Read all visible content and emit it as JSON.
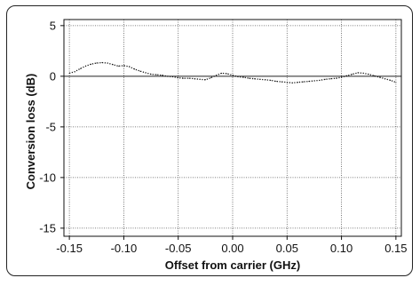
{
  "chart_data": {
    "type": "line",
    "title": "",
    "xlabel": "Offset from carrier (GHz)",
    "ylabel": "Conversion loss (dB)",
    "xlim": [
      -0.155,
      0.155
    ],
    "ylim": [
      -15.8,
      5.6
    ],
    "x_ticks": [
      -0.15,
      -0.1,
      -0.05,
      0.0,
      0.05,
      0.1,
      0.15
    ],
    "x_tick_labels": [
      "-0.15",
      "-0.10",
      "-0.05",
      "0.00",
      "0.05",
      "0.10",
      "0.15"
    ],
    "y_ticks": [
      5,
      0,
      -5,
      -10,
      -15
    ],
    "y_tick_labels": [
      "5",
      "0",
      "-5",
      "-10",
      "-15"
    ],
    "grid": true,
    "line_style": "dotted",
    "series": [
      {
        "x": [
          -0.15,
          -0.145,
          -0.14,
          -0.135,
          -0.13,
          -0.125,
          -0.12,
          -0.115,
          -0.11,
          -0.105,
          -0.1,
          -0.095,
          -0.09,
          -0.085,
          -0.08,
          -0.075,
          -0.07,
          -0.065,
          -0.06,
          -0.055,
          -0.05,
          -0.045,
          -0.04,
          -0.035,
          -0.03,
          -0.025,
          -0.02,
          -0.015,
          -0.01,
          -0.005,
          0.0,
          0.005,
          0.01,
          0.015,
          0.02,
          0.025,
          0.03,
          0.035,
          0.04,
          0.045,
          0.05,
          0.055,
          0.06,
          0.065,
          0.07,
          0.075,
          0.08,
          0.085,
          0.09,
          0.095,
          0.1,
          0.105,
          0.11,
          0.115,
          0.12,
          0.125,
          0.13,
          0.135,
          0.14,
          0.145,
          0.15
        ],
        "values": [
          0.3,
          0.45,
          0.75,
          1.0,
          1.2,
          1.3,
          1.35,
          1.3,
          1.15,
          1.0,
          1.05,
          0.95,
          0.7,
          0.5,
          0.35,
          0.2,
          0.15,
          0.1,
          0.0,
          -0.05,
          -0.15,
          -0.2,
          -0.2,
          -0.25,
          -0.3,
          -0.35,
          -0.15,
          0.1,
          0.3,
          0.25,
          0.1,
          -0.05,
          -0.1,
          -0.2,
          -0.25,
          -0.3,
          -0.35,
          -0.4,
          -0.5,
          -0.55,
          -0.6,
          -0.65,
          -0.6,
          -0.55,
          -0.5,
          -0.45,
          -0.4,
          -0.3,
          -0.25,
          -0.2,
          -0.1,
          0.05,
          0.2,
          0.35,
          0.3,
          0.2,
          0.05,
          -0.1,
          -0.25,
          -0.4,
          -0.6
        ]
      }
    ]
  }
}
